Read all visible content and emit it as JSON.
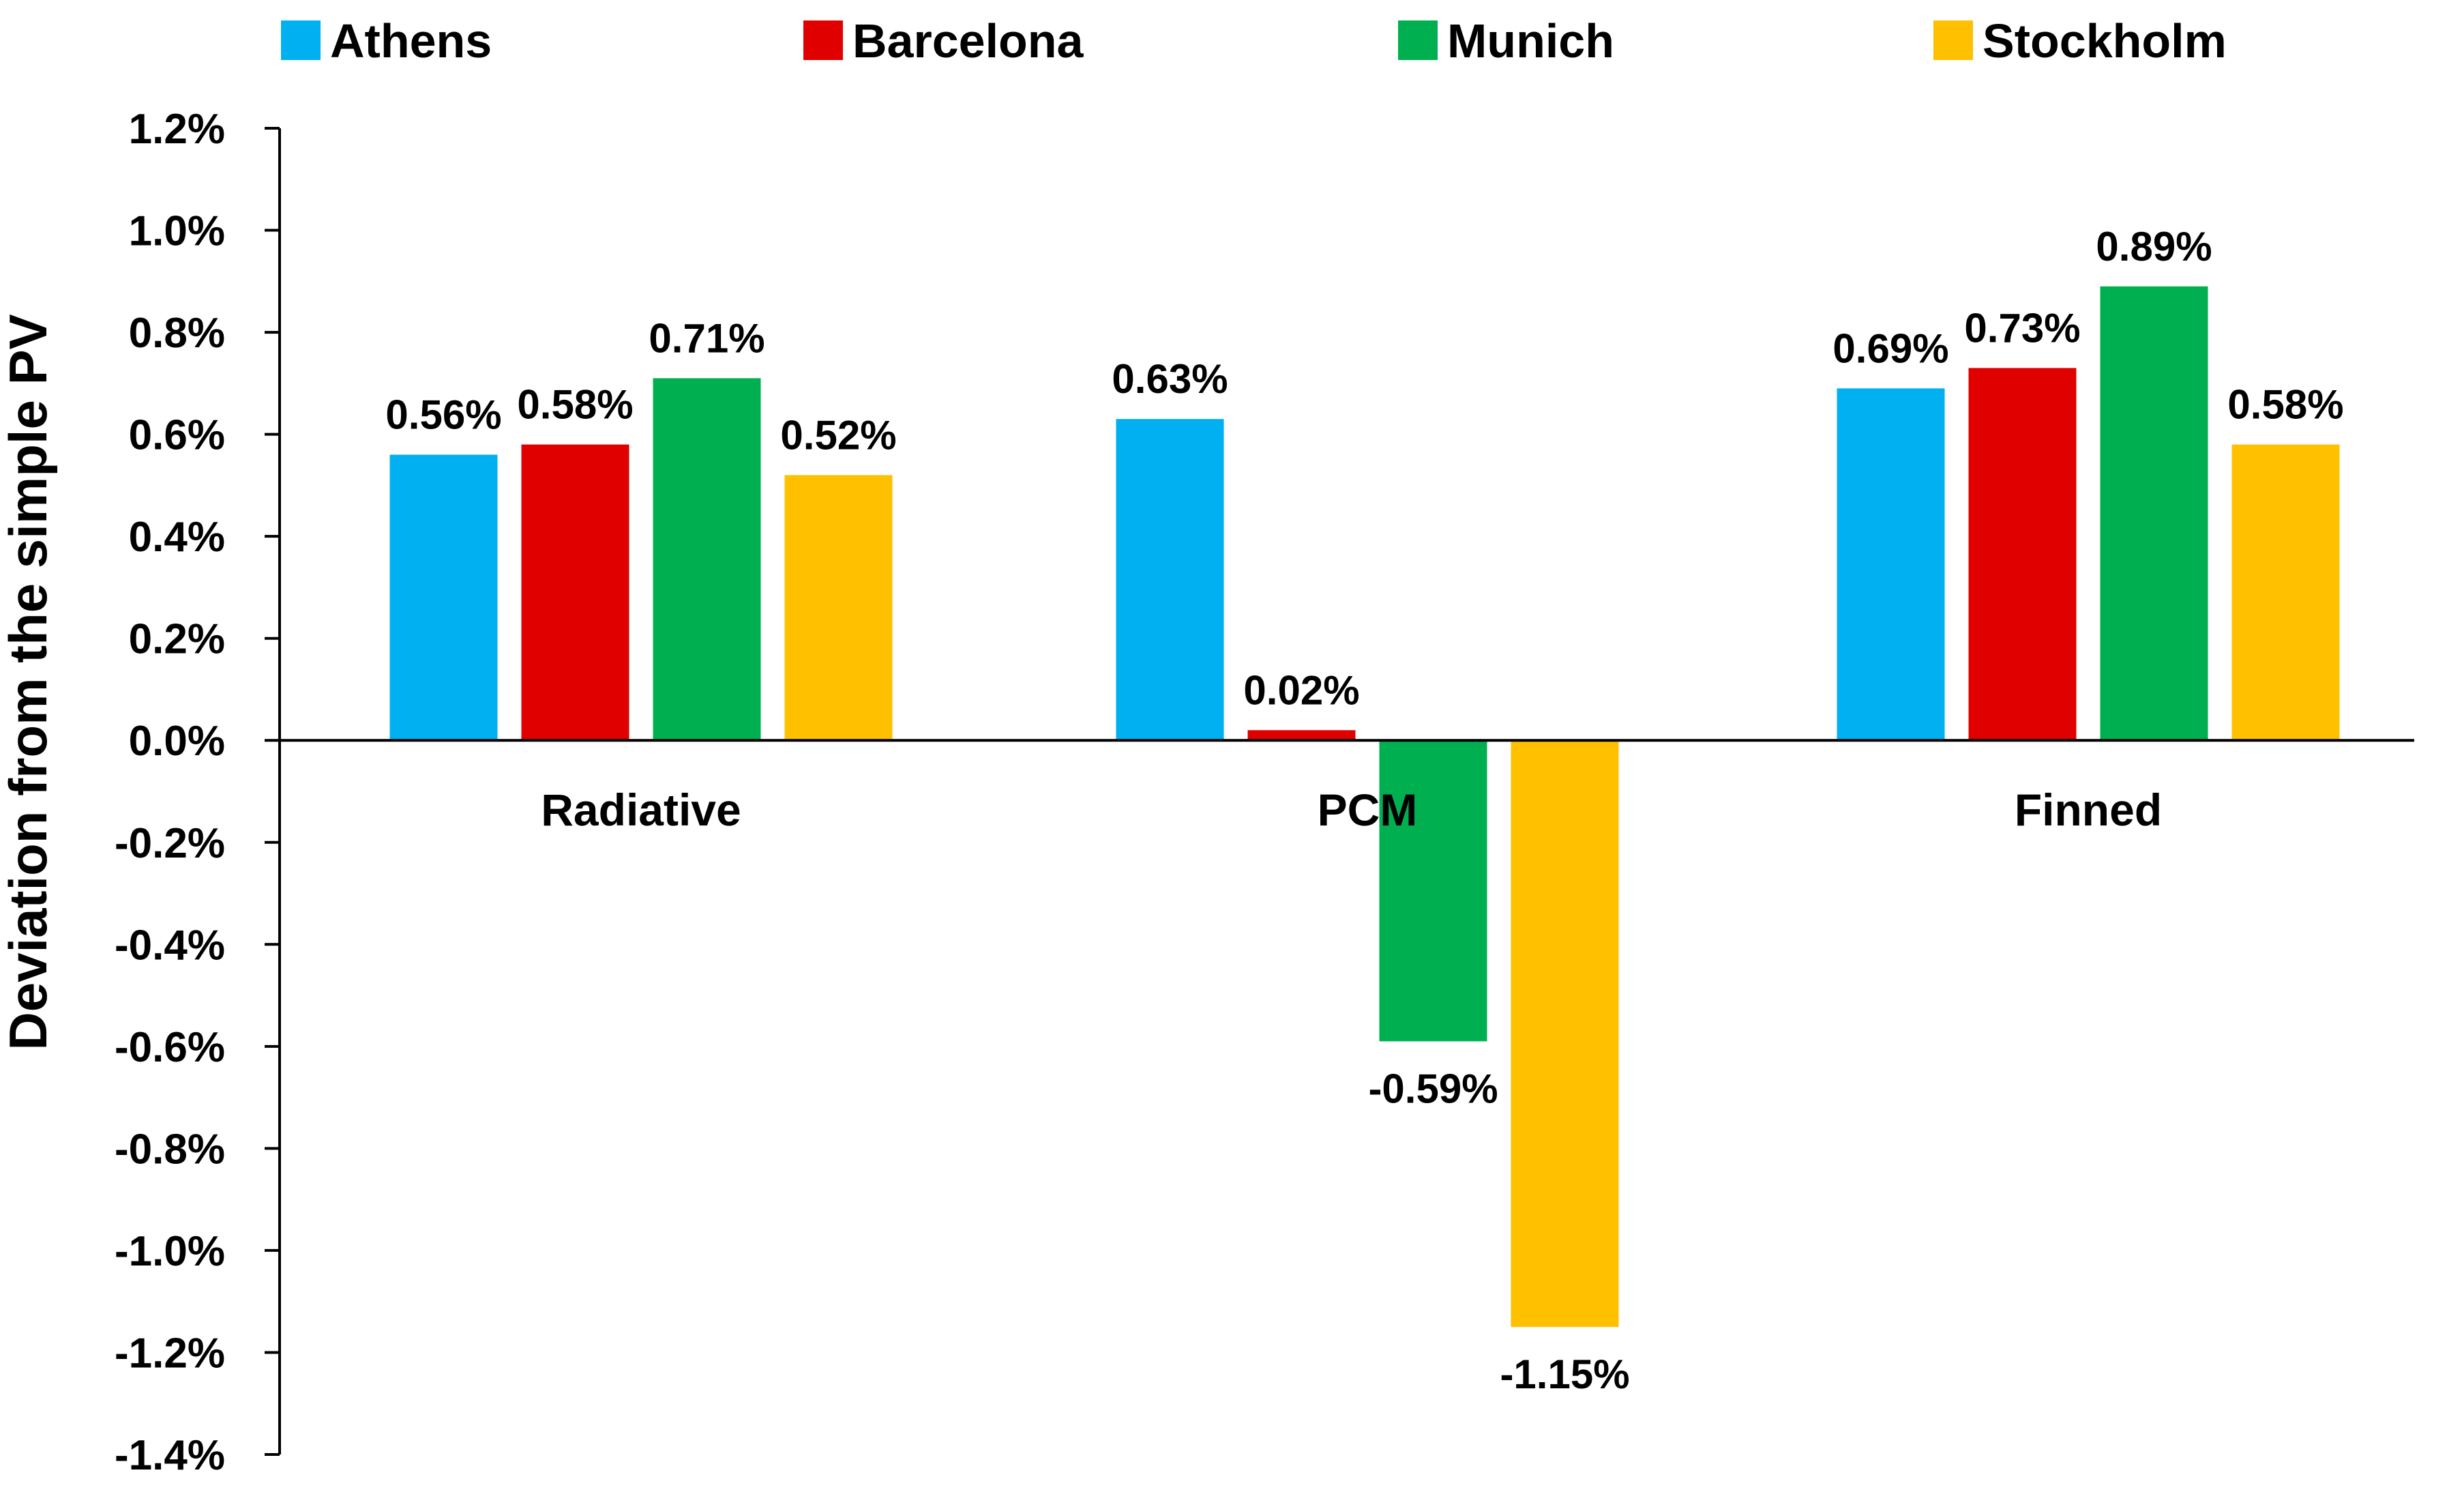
{
  "chart_data": {
    "type": "bar",
    "title": "",
    "xlabel": "",
    "ylabel": "Deviation from the simple PV",
    "ylim": [
      -1.4,
      1.2
    ],
    "ytick_step": 0.2,
    "yticks": [
      "1.2%",
      "1.0%",
      "0.8%",
      "0.6%",
      "0.4%",
      "0.2%",
      "0.0%",
      "-0.2%",
      "-0.4%",
      "-0.6%",
      "-0.8%",
      "-1.0%",
      "-1.2%",
      "-1.4%"
    ],
    "categories": [
      "Radiative",
      "PCM",
      "Finned"
    ],
    "legend_position": "top",
    "grid": false,
    "series": [
      {
        "name": "Athens",
        "color": "#00B0F0",
        "values": [
          0.56,
          0.63,
          0.69
        ],
        "labels": [
          "0.56%",
          "0.63%",
          "0.69%"
        ]
      },
      {
        "name": "Barcelona",
        "color": "#E00000",
        "values": [
          0.58,
          0.02,
          0.73
        ],
        "labels": [
          "0.58%",
          "0.02%",
          "0.73%"
        ]
      },
      {
        "name": "Munich",
        "color": "#00B050",
        "values": [
          0.71,
          -0.59,
          0.89
        ],
        "labels": [
          "0.71%",
          "-0.59%",
          "0.89%"
        ]
      },
      {
        "name": "Stockholm",
        "color": "#FFC000",
        "values": [
          0.52,
          -1.15,
          0.58
        ],
        "labels": [
          "0.52%",
          "-1.15%",
          "0.58%"
        ]
      }
    ]
  }
}
